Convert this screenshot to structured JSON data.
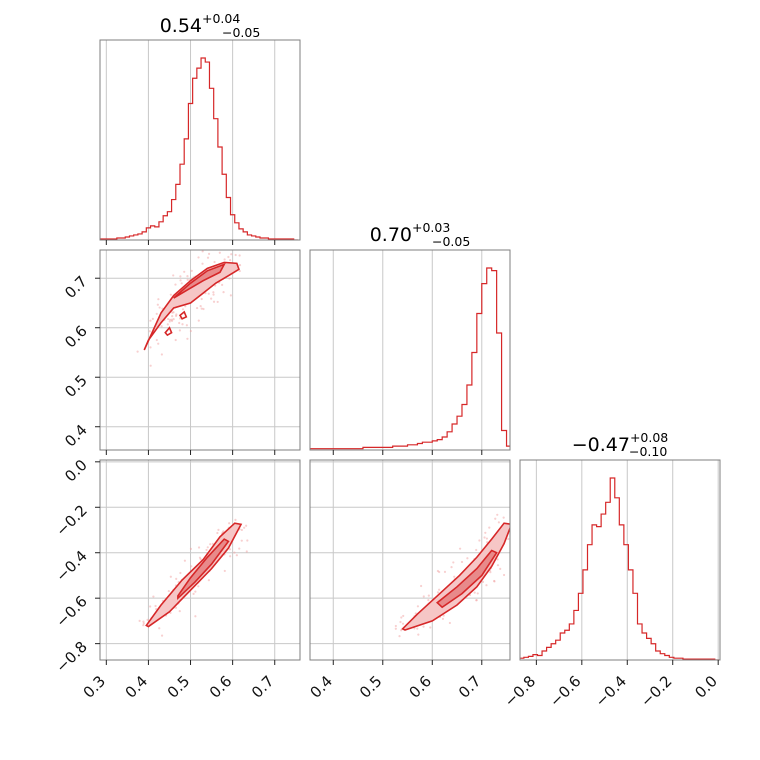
{
  "chart_data": {
    "type": "corner",
    "color": "#d62728",
    "titles": [
      {
        "median": "0.54",
        "plus": "+0.04",
        "minus": "−0.05"
      },
      {
        "median": "0.70",
        "plus": "+0.03",
        "minus": "−0.05"
      },
      {
        "median": "−0.47",
        "plus": "+0.08",
        "minus": "−0.10"
      }
    ],
    "params": [
      {
        "range": [
          0.285,
          0.76
        ],
        "ticks": [
          0.3,
          0.4,
          0.5,
          0.6,
          0.7
        ],
        "tick_labels": [
          "0.3",
          "0.4",
          "0.5",
          "0.6",
          "0.7"
        ]
      },
      {
        "range": [
          0.353,
          0.757
        ],
        "ticks": [
          0.4,
          0.5,
          0.6,
          0.7
        ],
        "tick_labels": [
          "0.4",
          "0.5",
          "0.6",
          "0.7"
        ]
      },
      {
        "range": [
          -0.872,
          0.008
        ],
        "ticks": [
          -0.8,
          -0.6,
          -0.4,
          -0.2,
          0.0
        ],
        "tick_labels": [
          "−0.8",
          "−0.6",
          "−0.4",
          "−0.2",
          "0.0"
        ]
      }
    ],
    "histograms": [
      {
        "bin_centers": [
          0.29,
          0.3,
          0.31,
          0.32,
          0.33,
          0.34,
          0.35,
          0.36,
          0.37,
          0.38,
          0.39,
          0.4,
          0.41,
          0.42,
          0.43,
          0.44,
          0.45,
          0.46,
          0.47,
          0.48,
          0.49,
          0.5,
          0.51,
          0.52,
          0.53,
          0.54,
          0.55,
          0.56,
          0.57,
          0.58,
          0.59,
          0.6,
          0.61,
          0.62,
          0.63,
          0.64,
          0.65,
          0.66,
          0.67,
          0.68,
          0.69,
          0.7,
          0.71,
          0.72,
          0.73,
          0.74,
          0.75
        ],
        "values": [
          1,
          1,
          1,
          1,
          2,
          2,
          3,
          4,
          5,
          6,
          8,
          12,
          14,
          13,
          18,
          24,
          28,
          40,
          55,
          75,
          100,
          135,
          160,
          170,
          180,
          176,
          150,
          120,
          92,
          65,
          42,
          25,
          17,
          11,
          8,
          5,
          4,
          3,
          2,
          2,
          1,
          1,
          1,
          1,
          1,
          1,
          0
        ]
      },
      {
        "bin_centers": [
          0.355,
          0.365,
          0.375,
          0.385,
          0.395,
          0.405,
          0.415,
          0.425,
          0.435,
          0.445,
          0.455,
          0.465,
          0.475,
          0.485,
          0.495,
          0.505,
          0.515,
          0.525,
          0.535,
          0.545,
          0.555,
          0.565,
          0.575,
          0.585,
          0.595,
          0.605,
          0.615,
          0.625,
          0.635,
          0.645,
          0.655,
          0.665,
          0.675,
          0.685,
          0.695,
          0.705,
          0.715,
          0.725,
          0.735,
          0.745,
          0.755
        ],
        "values": [
          1,
          1,
          1,
          1,
          1,
          1,
          1,
          1,
          1,
          1,
          1,
          2,
          2,
          2,
          2,
          2,
          2,
          3,
          3,
          3,
          4,
          4,
          5,
          6,
          6,
          7,
          8,
          10,
          14,
          20,
          26,
          35,
          50,
          75,
          105,
          128,
          140,
          138,
          90,
          15,
          3
        ]
      },
      {
        "bin_centers": [
          -0.865,
          -0.845,
          -0.825,
          -0.805,
          -0.785,
          -0.765,
          -0.745,
          -0.725,
          -0.705,
          -0.685,
          -0.665,
          -0.645,
          -0.625,
          -0.605,
          -0.585,
          -0.565,
          -0.545,
          -0.525,
          -0.505,
          -0.485,
          -0.465,
          -0.445,
          -0.425,
          -0.405,
          -0.385,
          -0.365,
          -0.345,
          -0.325,
          -0.305,
          -0.285,
          -0.265,
          -0.245,
          -0.225,
          -0.205,
          -0.185,
          -0.165,
          -0.145,
          -0.125,
          -0.105,
          -0.085,
          -0.065,
          -0.045,
          -0.025,
          -0.005
        ],
        "values": [
          2,
          3,
          4,
          6,
          5,
          10,
          14,
          18,
          22,
          30,
          33,
          40,
          55,
          74,
          100,
          128,
          150,
          148,
          162,
          175,
          202,
          180,
          150,
          128,
          100,
          74,
          40,
          30,
          24,
          18,
          10,
          7,
          5,
          3,
          2,
          2,
          1,
          1,
          1,
          1,
          1,
          1,
          1,
          0
        ]
      }
    ],
    "contours": {
      "p10": {
        "outer": [
          [
            0.39,
            0.555
          ],
          [
            0.43,
            0.63
          ],
          [
            0.46,
            0.665
          ],
          [
            0.5,
            0.695
          ],
          [
            0.54,
            0.72
          ],
          [
            0.58,
            0.732
          ],
          [
            0.61,
            0.73
          ],
          [
            0.615,
            0.718
          ],
          [
            0.59,
            0.705
          ],
          [
            0.56,
            0.69
          ],
          [
            0.53,
            0.67
          ],
          [
            0.5,
            0.65
          ],
          [
            0.46,
            0.64
          ],
          [
            0.43,
            0.61
          ],
          [
            0.4,
            0.575
          ]
        ],
        "inner": [
          [
            0.46,
            0.66
          ],
          [
            0.5,
            0.69
          ],
          [
            0.54,
            0.715
          ],
          [
            0.58,
            0.728
          ],
          [
            0.57,
            0.712
          ],
          [
            0.53,
            0.695
          ],
          [
            0.49,
            0.675
          ],
          [
            0.46,
            0.66
          ]
        ],
        "islands": [
          [
            [
              0.44,
              0.59
            ],
            [
              0.45,
              0.6
            ],
            [
              0.455,
              0.59
            ],
            [
              0.445,
              0.585
            ]
          ],
          [
            [
              0.475,
              0.625
            ],
            [
              0.485,
              0.632
            ],
            [
              0.49,
              0.622
            ],
            [
              0.48,
              0.618
            ]
          ]
        ]
      },
      "p20": {
        "outer": [
          [
            0.4,
            -0.725
          ],
          [
            0.45,
            -0.66
          ],
          [
            0.5,
            -0.565
          ],
          [
            0.55,
            -0.47
          ],
          [
            0.59,
            -0.38
          ],
          [
            0.62,
            -0.275
          ],
          [
            0.605,
            -0.27
          ],
          [
            0.57,
            -0.33
          ],
          [
            0.53,
            -0.43
          ],
          [
            0.48,
            -0.52
          ],
          [
            0.43,
            -0.63
          ],
          [
            0.395,
            -0.72
          ]
        ],
        "inner": [
          [
            0.47,
            -0.6
          ],
          [
            0.51,
            -0.53
          ],
          [
            0.55,
            -0.45
          ],
          [
            0.59,
            -0.35
          ],
          [
            0.58,
            -0.34
          ],
          [
            0.54,
            -0.42
          ],
          [
            0.5,
            -0.51
          ],
          [
            0.47,
            -0.59
          ]
        ]
      },
      "p21": {
        "outer": [
          [
            0.545,
            -0.74
          ],
          [
            0.6,
            -0.7
          ],
          [
            0.65,
            -0.63
          ],
          [
            0.69,
            -0.55
          ],
          [
            0.72,
            -0.46
          ],
          [
            0.745,
            -0.36
          ],
          [
            0.76,
            -0.275
          ],
          [
            0.745,
            -0.27
          ],
          [
            0.72,
            -0.34
          ],
          [
            0.69,
            -0.42
          ],
          [
            0.655,
            -0.5
          ],
          [
            0.61,
            -0.59
          ],
          [
            0.57,
            -0.67
          ],
          [
            0.54,
            -0.735
          ]
        ],
        "inner": [
          [
            0.62,
            -0.64
          ],
          [
            0.66,
            -0.58
          ],
          [
            0.7,
            -0.5
          ],
          [
            0.73,
            -0.4
          ],
          [
            0.72,
            -0.39
          ],
          [
            0.69,
            -0.47
          ],
          [
            0.65,
            -0.55
          ],
          [
            0.61,
            -0.62
          ]
        ]
      }
    }
  }
}
